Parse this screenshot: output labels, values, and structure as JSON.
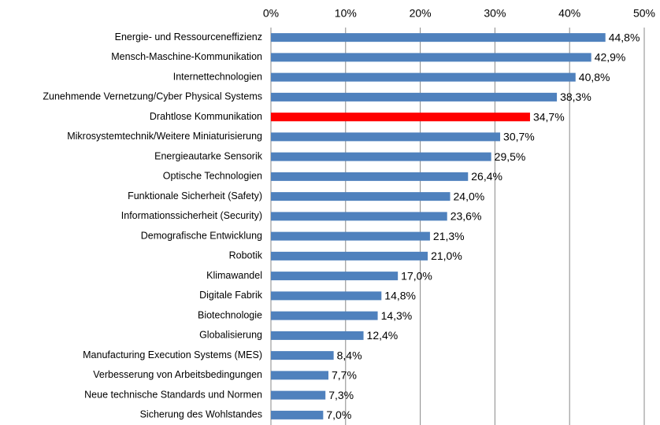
{
  "chart_data": {
    "type": "barh",
    "categories": [
      "Energie- und Ressourceneffizienz",
      "Mensch-Maschine-Kommunikation",
      "Internettechnologien",
      "Zunehmende Vernetzung/Cyber Physical Systems",
      "Drahtlose Kommunikation",
      "Mikrosystemtechnik/Weitere Miniaturisierung",
      "Energieautarke Sensorik",
      "Optische Technologien",
      "Funktionale Sicherheit (Safety)",
      "Informationssicherheit (Security)",
      "Demografische Entwicklung",
      "Robotik",
      "Klimawandel",
      "Digitale Fabrik",
      "Biotechnologie",
      "Globalisierung",
      "Manufacturing Execution Systems (MES)",
      "Verbesserung von Arbeitsbedingungen",
      "Neue technische Standards und Normen",
      "Sicherung des Wohlstandes"
    ],
    "values": [
      44.8,
      42.9,
      40.8,
      38.3,
      34.7,
      30.7,
      29.5,
      26.4,
      24.0,
      23.6,
      21.3,
      21.0,
      17.0,
      14.8,
      14.3,
      12.4,
      8.4,
      7.7,
      7.3,
      7.0
    ],
    "value_labels": [
      "44,8%",
      "42,9%",
      "40,8%",
      "38,3%",
      "34,7%",
      "30,7%",
      "29,5%",
      "26,4%",
      "24,0%",
      "23,6%",
      "21,3%",
      "21,0%",
      "17,0%",
      "14,8%",
      "14,3%",
      "12,4%",
      "8,4%",
      "7,7%",
      "7,3%",
      "7,0%"
    ],
    "colors": [
      "#4f81bd",
      "#4f81bd",
      "#4f81bd",
      "#4f81bd",
      "#ff0000",
      "#4f81bd",
      "#4f81bd",
      "#4f81bd",
      "#4f81bd",
      "#4f81bd",
      "#4f81bd",
      "#4f81bd",
      "#4f81bd",
      "#4f81bd",
      "#4f81bd",
      "#4f81bd",
      "#4f81bd",
      "#4f81bd",
      "#4f81bd",
      "#4f81bd"
    ],
    "xlim": [
      0,
      50
    ],
    "xticks": [
      {
        "value": 0,
        "label": "0%"
      },
      {
        "value": 10,
        "label": "10%"
      },
      {
        "value": 20,
        "label": "20%"
      },
      {
        "value": 30,
        "label": "30%"
      },
      {
        "value": 40,
        "label": "40%"
      },
      {
        "value": 50,
        "label": "50%"
      }
    ],
    "grid": true
  }
}
